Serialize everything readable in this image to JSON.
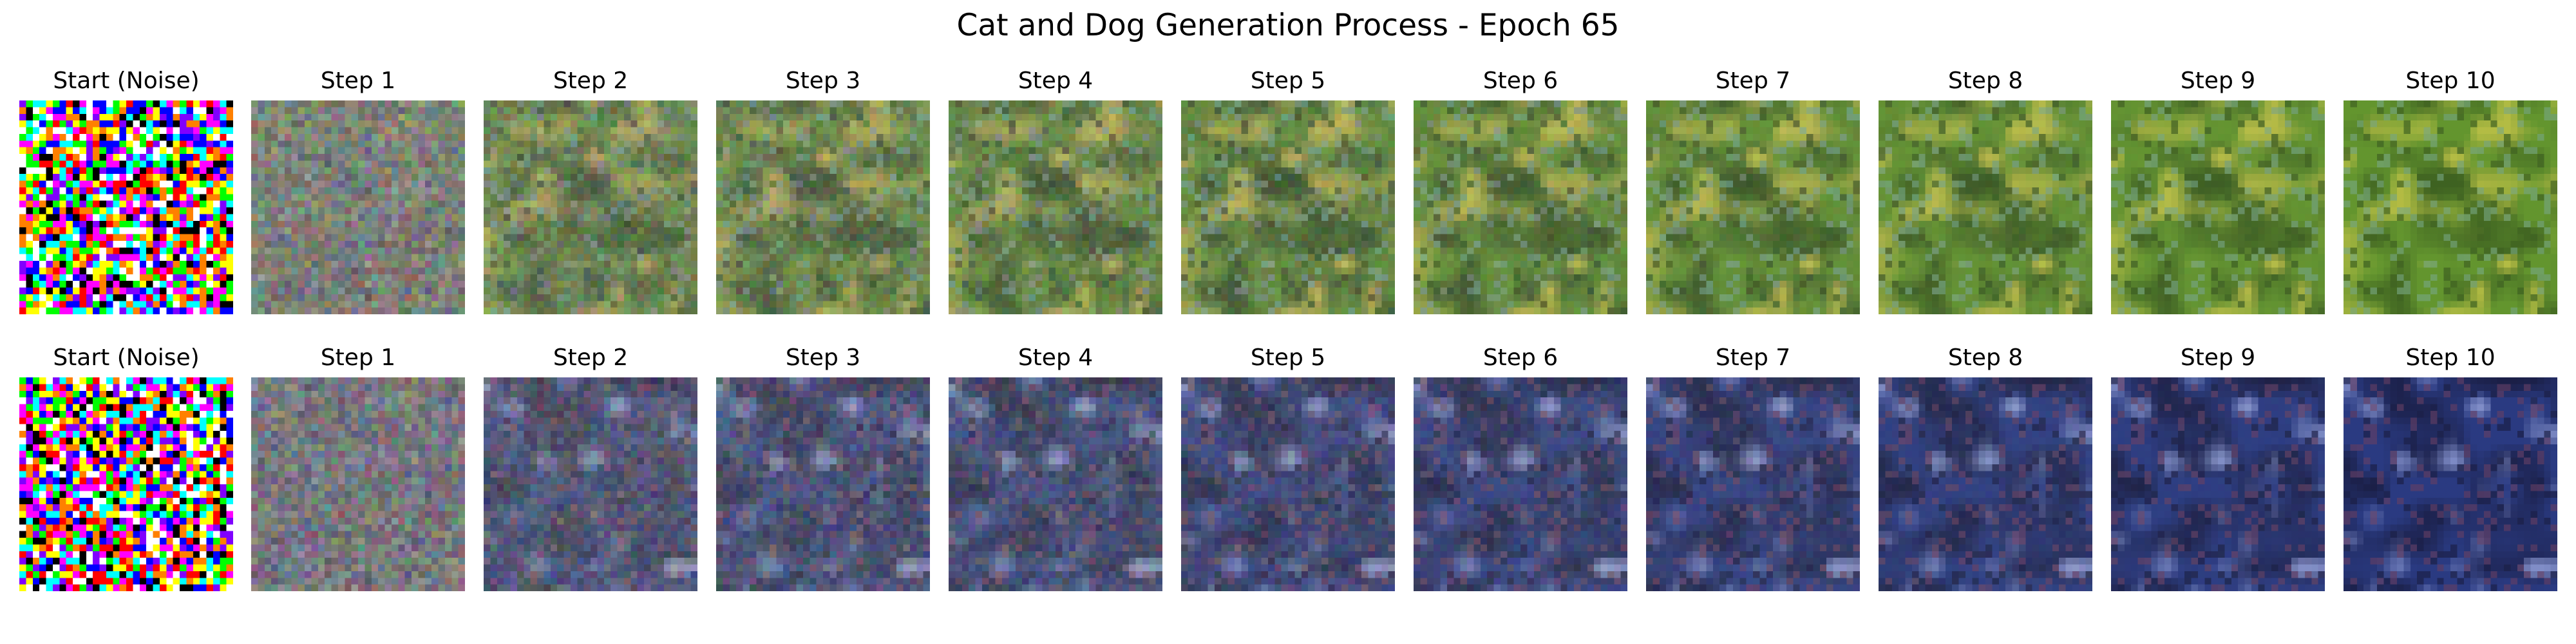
{
  "figure": {
    "title": "Cat and Dog Generation Process - Epoch 65"
  },
  "rows": [
    {
      "panels": [
        {
          "label": "Start (Noise)",
          "stage": 0
        },
        {
          "label": "Step 1",
          "stage": 1
        },
        {
          "label": "Step 2",
          "stage": 2
        },
        {
          "label": "Step 3",
          "stage": 3
        },
        {
          "label": "Step 4",
          "stage": 4
        },
        {
          "label": "Step 5",
          "stage": 5
        },
        {
          "label": "Step 6",
          "stage": 6
        },
        {
          "label": "Step 7",
          "stage": 7
        },
        {
          "label": "Step 8",
          "stage": 8
        },
        {
          "label": "Step 9",
          "stage": 9
        },
        {
          "label": "Step 10",
          "stage": 10
        }
      ],
      "palette": {
        "description": "green grass field, olive/yellow animal shape",
        "base": "#5f8f2e",
        "shadow": "#2e4a1c",
        "highlight": "#c9c24a",
        "accent": "#7aa6a0"
      }
    },
    {
      "panels": [
        {
          "label": "Start (Noise)",
          "stage": 0
        },
        {
          "label": "Step 1",
          "stage": 1
        },
        {
          "label": "Step 2",
          "stage": 2
        },
        {
          "label": "Step 3",
          "stage": 3
        },
        {
          "label": "Step 4",
          "stage": 4
        },
        {
          "label": "Step 5",
          "stage": 5
        },
        {
          "label": "Step 6",
          "stage": 6
        },
        {
          "label": "Step 7",
          "stage": 7
        },
        {
          "label": "Step 8",
          "stage": 8
        },
        {
          "label": "Step 9",
          "stage": 9
        },
        {
          "label": "Step 10",
          "stage": 10
        }
      ],
      "palette": {
        "description": "dark blue/purple scene with brown and pink blobs",
        "base": "#2d3f86",
        "shadow": "#1a1d3d",
        "highlight": "#9aa8df",
        "accent": "#7a4560"
      }
    }
  ],
  "colors": {
    "background": "#ffffff",
    "text": "#000000"
  }
}
